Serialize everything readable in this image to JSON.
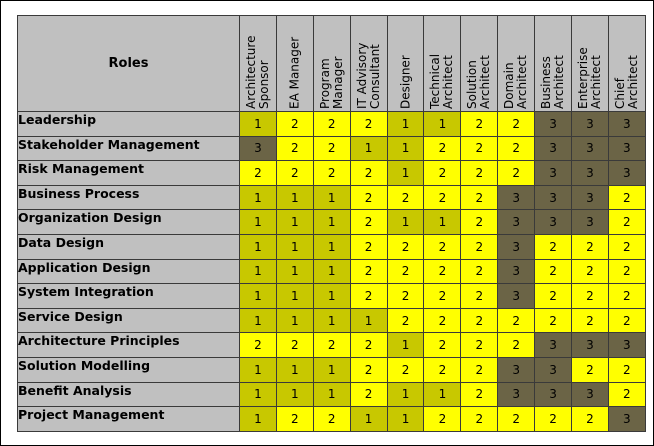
{
  "header": {
    "roles_label": "Roles",
    "columns": [
      "Architecture\nSponsor",
      "EA Manager",
      "Program\nManager",
      "IT Advisory\nConsultant",
      "Designer",
      "Technical\nArchitect",
      "Solution\nArchitect",
      "Domain\nArchitect",
      "Business\nArchitect",
      "Enterprise\nArchitect",
      "Chief\nArchitect"
    ]
  },
  "level_colors": {
    "1": "#c8c800",
    "2": "#ffff00",
    "3": "#6b6446"
  },
  "rows": [
    {
      "label": "Leadership",
      "values": [
        "1",
        "2",
        "2",
        "2",
        "1",
        "1",
        "2",
        "2",
        "3",
        "3",
        "3"
      ]
    },
    {
      "label": "Stakeholder Management",
      "values": [
        "3",
        "2",
        "2",
        "1",
        "1",
        "2",
        "2",
        "2",
        "3",
        "3",
        "3"
      ]
    },
    {
      "label": "Risk Management",
      "values": [
        "2",
        "2",
        "2",
        "2",
        "1",
        "2",
        "2",
        "2",
        "3",
        "3",
        "3"
      ]
    },
    {
      "label": "Business Process",
      "values": [
        "1",
        "1",
        "1",
        "2",
        "2",
        "2",
        "2",
        "3",
        "3",
        "3",
        "2"
      ]
    },
    {
      "label": "Organization Design",
      "values": [
        "1",
        "1",
        "1",
        "2",
        "1",
        "1",
        "2",
        "3",
        "3",
        "3",
        "2"
      ]
    },
    {
      "label": "Data Design",
      "values": [
        "1",
        "1",
        "1",
        "2",
        "2",
        "2",
        "2",
        "3",
        "2",
        "2",
        "2"
      ]
    },
    {
      "label": "Application Design",
      "values": [
        "1",
        "1",
        "1",
        "2",
        "2",
        "2",
        "2",
        "3",
        "2",
        "2",
        "2"
      ]
    },
    {
      "label": "System Integration",
      "values": [
        "1",
        "1",
        "1",
        "2",
        "2",
        "2",
        "2",
        "3",
        "2",
        "2",
        "2"
      ]
    },
    {
      "label": "Service Design",
      "values": [
        "1",
        "1",
        "1",
        "1",
        "2",
        "2",
        "2",
        "2",
        "2",
        "2",
        "2"
      ]
    },
    {
      "label": "Architecture Principles",
      "values": [
        "2",
        "2",
        "2",
        "2",
        "1",
        "2",
        "2",
        "2",
        "3",
        "3",
        "3"
      ]
    },
    {
      "label": "Solution Modelling",
      "values": [
        "1",
        "1",
        "1",
        "2",
        "2",
        "2",
        "2",
        "3",
        "3",
        "2",
        "2"
      ]
    },
    {
      "label": "Benefit Analysis",
      "values": [
        "1",
        "1",
        "1",
        "2",
        "1",
        "1",
        "2",
        "3",
        "3",
        "3",
        "2"
      ]
    },
    {
      "label": "Project Management",
      "values": [
        "1",
        "2",
        "2",
        "1",
        "1",
        "2",
        "2",
        "2",
        "2",
        "2",
        "3"
      ]
    }
  ]
}
